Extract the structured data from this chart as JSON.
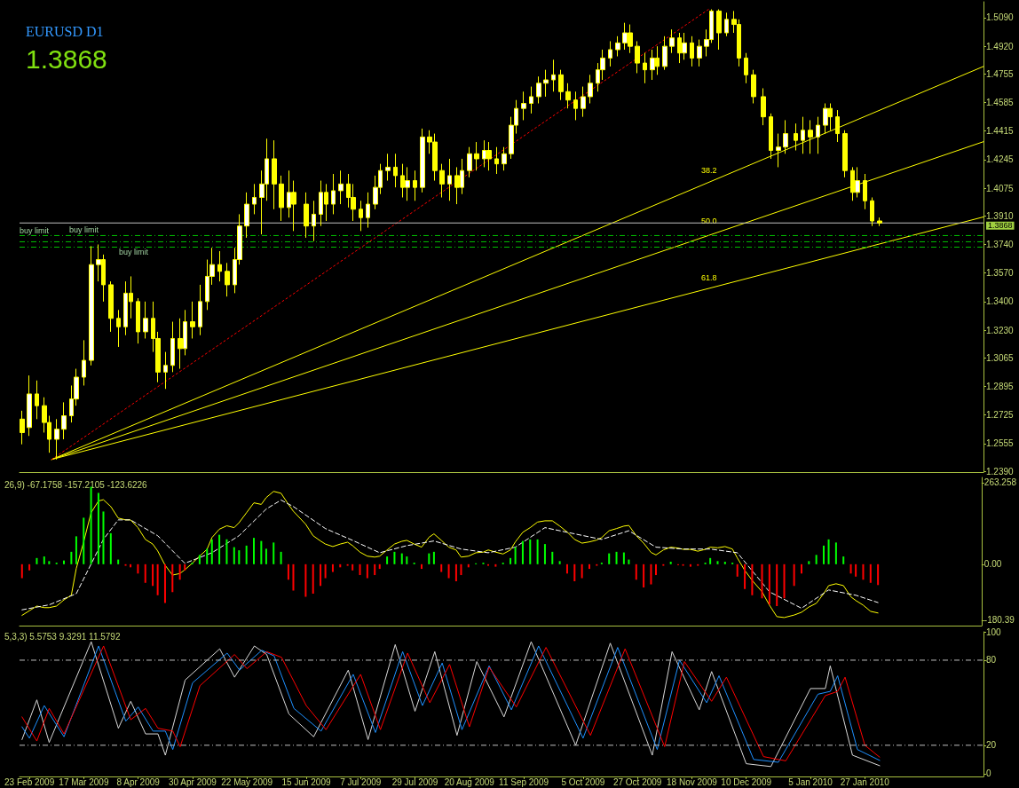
{
  "chart_data": [
    {
      "type": "candlestick",
      "title": "EURUSD D1",
      "subtitle": "1.3868",
      "color": "#ffff00",
      "marker": "none",
      "grid": false,
      "tick_labels": "y",
      "xlim": [
        "2009-02-19",
        "2010-03-16"
      ],
      "ylim": [
        1.2385,
        1.5185
      ],
      "yticks": [
        {
          "value": 1.509,
          "label": "1.5090"
        },
        {
          "value": 1.492,
          "label": "1.4920"
        },
        {
          "value": 1.4755,
          "label": "1.4755"
        },
        {
          "value": 1.4585,
          "label": "1.4585"
        },
        {
          "value": 1.4415,
          "label": "1.4415"
        },
        {
          "value": 1.4245,
          "label": "1.4245"
        },
        {
          "value": 1.4075,
          "label": "1.4075"
        },
        {
          "value": 1.391,
          "label": "1.3910"
        },
        {
          "value": 1.374,
          "label": "1.3740"
        },
        {
          "value": 1.357,
          "label": "1.3570"
        },
        {
          "value": 1.34,
          "label": "1.3400"
        },
        {
          "value": 1.323,
          "label": "1.3230"
        },
        {
          "value": 1.3065,
          "label": "1.3065"
        },
        {
          "value": 1.2895,
          "label": "1.2895"
        },
        {
          "value": 1.2725,
          "label": "1.2725"
        },
        {
          "value": 1.2555,
          "label": "1.2555"
        },
        {
          "value": 1.239,
          "label": "1.2390"
        }
      ],
      "x": [
        "2009-02-20",
        "2009-02-23",
        "2009-02-26",
        "2009-03-01",
        "2009-03-03",
        "2009-03-06",
        "2009-03-09",
        "2009-03-12",
        "2009-03-14",
        "2009-03-17",
        "2009-03-20",
        "2009-03-23",
        "2009-03-25",
        "2009-03-28",
        "2009-03-31",
        "2009-04-03",
        "2009-04-05",
        "2009-04-08",
        "2009-04-11",
        "2009-04-14",
        "2009-04-16",
        "2009-04-19",
        "2009-04-22",
        "2009-04-25",
        "2009-04-27",
        "2009-04-30",
        "2009-05-03",
        "2009-05-06",
        "2009-05-08",
        "2009-05-11",
        "2009-05-14",
        "2009-05-17",
        "2009-05-19",
        "2009-05-22",
        "2009-05-25",
        "2009-05-28",
        "2009-05-30",
        "2009-06-02",
        "2009-06-05",
        "2009-06-08",
        "2009-06-10",
        "2009-06-15",
        "2009-06-18",
        "2009-06-21",
        "2009-06-23",
        "2009-06-26",
        "2009-06-29",
        "2009-07-02",
        "2009-07-04",
        "2009-07-07",
        "2009-07-10",
        "2009-07-13",
        "2009-07-15",
        "2009-07-18",
        "2009-07-21",
        "2009-07-24",
        "2009-07-26",
        "2009-07-29",
        "2009-08-01",
        "2009-08-04",
        "2009-08-06",
        "2009-08-09",
        "2009-08-12",
        "2009-08-15",
        "2009-08-17",
        "2009-08-20",
        "2009-08-23",
        "2009-08-26",
        "2009-08-28",
        "2009-08-31",
        "2009-09-03",
        "2009-09-06",
        "2009-09-08",
        "2009-09-11",
        "2009-09-14",
        "2009-09-17",
        "2009-09-20",
        "2009-09-23",
        "2009-09-26",
        "2009-09-29",
        "2009-10-02",
        "2009-10-05",
        "2009-10-08",
        "2009-10-11",
        "2009-10-13",
        "2009-10-16",
        "2009-10-19",
        "2009-10-22",
        "2009-10-24",
        "2009-10-27",
        "2009-10-30",
        "2009-11-02",
        "2009-11-04",
        "2009-11-07",
        "2009-11-10",
        "2009-11-13",
        "2009-11-15",
        "2009-11-18",
        "2009-11-21",
        "2009-11-24",
        "2009-11-26",
        "2009-11-29",
        "2009-12-02",
        "2009-12-05",
        "2009-12-07",
        "2009-12-10",
        "2009-12-13",
        "2009-12-17",
        "2009-12-20",
        "2009-12-23",
        "2009-12-26",
        "2009-12-30",
        "2010-01-02",
        "2010-01-05",
        "2010-01-08",
        "2010-01-11",
        "2010-01-13",
        "2010-01-16",
        "2010-01-19",
        "2010-01-22",
        "2010-01-24",
        "2010-01-27",
        "2010-01-30",
        "2010-02-02"
      ],
      "ohlc": [
        [
          1.27,
          1.275,
          1.255,
          1.262
        ],
        [
          1.265,
          1.296,
          1.26,
          1.285
        ],
        [
          1.285,
          1.293,
          1.27,
          1.278
        ],
        [
          1.278,
          1.283,
          1.262,
          1.268
        ],
        [
          1.268,
          1.272,
          1.25,
          1.258
        ],
        [
          1.258,
          1.27,
          1.246,
          1.264
        ],
        [
          1.264,
          1.28,
          1.258,
          1.272
        ],
        [
          1.272,
          1.29,
          1.268,
          1.282
        ],
        [
          1.282,
          1.3,
          1.278,
          1.295
        ],
        [
          1.295,
          1.317,
          1.29,
          1.305
        ],
        [
          1.305,
          1.373,
          1.302,
          1.362
        ],
        [
          1.362,
          1.374,
          1.352,
          1.365
        ],
        [
          1.365,
          1.368,
          1.34,
          1.35
        ],
        [
          1.35,
          1.352,
          1.322,
          1.33
        ],
        [
          1.33,
          1.335,
          1.313,
          1.325
        ],
        [
          1.325,
          1.352,
          1.32,
          1.345
        ],
        [
          1.345,
          1.355,
          1.33,
          1.34
        ],
        [
          1.34,
          1.342,
          1.315,
          1.322
        ],
        [
          1.322,
          1.34,
          1.318,
          1.33
        ],
        [
          1.33,
          1.34,
          1.31,
          1.318
        ],
        [
          1.318,
          1.322,
          1.292,
          1.298
        ],
        [
          1.298,
          1.31,
          1.288,
          1.302
        ],
        [
          1.302,
          1.328,
          1.298,
          1.318
        ],
        [
          1.318,
          1.33,
          1.3,
          1.312
        ],
        [
          1.312,
          1.335,
          1.308,
          1.328
        ],
        [
          1.328,
          1.34,
          1.318,
          1.325
        ],
        [
          1.325,
          1.35,
          1.32,
          1.34
        ],
        [
          1.34,
          1.365,
          1.335,
          1.355
        ],
        [
          1.355,
          1.372,
          1.35,
          1.362
        ],
        [
          1.362,
          1.37,
          1.352,
          1.358
        ],
        [
          1.358,
          1.363,
          1.343,
          1.35
        ],
        [
          1.35,
          1.372,
          1.345,
          1.365
        ],
        [
          1.365,
          1.392,
          1.362,
          1.385
        ],
        [
          1.385,
          1.405,
          1.378,
          1.398
        ],
        [
          1.398,
          1.41,
          1.392,
          1.402
        ],
        [
          1.402,
          1.418,
          1.38,
          1.41
        ],
        [
          1.41,
          1.437,
          1.4,
          1.425
        ],
        [
          1.425,
          1.436,
          1.395,
          1.41
        ],
        [
          1.41,
          1.415,
          1.388,
          1.396
        ],
        [
          1.396,
          1.418,
          1.39,
          1.405
        ],
        [
          1.405,
          1.412,
          1.382,
          1.398
        ],
        [
          1.398,
          1.405,
          1.378,
          1.385
        ],
        [
          1.385,
          1.4,
          1.376,
          1.392
        ],
        [
          1.392,
          1.412,
          1.385,
          1.405
        ],
        [
          1.405,
          1.41,
          1.388,
          1.398
        ],
        [
          1.398,
          1.416,
          1.392,
          1.406
        ],
        [
          1.406,
          1.418,
          1.398,
          1.41
        ],
        [
          1.41,
          1.416,
          1.396,
          1.402
        ],
        [
          1.402,
          1.41,
          1.388,
          1.395
        ],
        [
          1.395,
          1.4,
          1.382,
          1.39
        ],
        [
          1.39,
          1.405,
          1.384,
          1.398
        ],
        [
          1.398,
          1.415,
          1.395,
          1.408
        ],
        [
          1.408,
          1.422,
          1.404,
          1.418
        ],
        [
          1.418,
          1.428,
          1.412,
          1.42
        ],
        [
          1.42,
          1.428,
          1.408,
          1.415
        ],
        [
          1.415,
          1.422,
          1.402,
          1.408
        ],
        [
          1.408,
          1.42,
          1.4,
          1.412
        ],
        [
          1.412,
          1.418,
          1.4,
          1.408
        ],
        [
          1.408,
          1.443,
          1.405,
          1.438
        ],
        [
          1.438,
          1.442,
          1.428,
          1.435
        ],
        [
          1.435,
          1.44,
          1.412,
          1.418
        ],
        [
          1.418,
          1.422,
          1.402,
          1.41
        ],
        [
          1.41,
          1.425,
          1.4,
          1.415
        ],
        [
          1.415,
          1.42,
          1.398,
          1.408
        ],
        [
          1.408,
          1.425,
          1.404,
          1.418
        ],
        [
          1.418,
          1.432,
          1.414,
          1.428
        ],
        [
          1.428,
          1.435,
          1.418,
          1.425
        ],
        [
          1.425,
          1.436,
          1.42,
          1.43
        ],
        [
          1.43,
          1.435,
          1.418,
          1.425
        ],
        [
          1.425,
          1.432,
          1.416,
          1.422
        ],
        [
          1.422,
          1.432,
          1.418,
          1.428
        ],
        [
          1.428,
          1.45,
          1.425,
          1.445
        ],
        [
          1.445,
          1.46,
          1.44,
          1.455
        ],
        [
          1.455,
          1.465,
          1.448,
          1.458
        ],
        [
          1.458,
          1.468,
          1.452,
          1.462
        ],
        [
          1.462,
          1.474,
          1.458,
          1.47
        ],
        [
          1.47,
          1.478,
          1.462,
          1.472
        ],
        [
          1.472,
          1.484,
          1.465,
          1.475
        ],
        [
          1.475,
          1.478,
          1.46,
          1.465
        ],
        [
          1.465,
          1.47,
          1.455,
          1.46
        ],
        [
          1.46,
          1.465,
          1.448,
          1.455
        ],
        [
          1.455,
          1.468,
          1.45,
          1.462
        ],
        [
          1.462,
          1.475,
          1.458,
          1.47
        ],
        [
          1.47,
          1.482,
          1.465,
          1.478
        ],
        [
          1.478,
          1.49,
          1.472,
          1.485
        ],
        [
          1.485,
          1.495,
          1.48,
          1.49
        ],
        [
          1.49,
          1.498,
          1.486,
          1.494
        ],
        [
          1.494,
          1.506,
          1.49,
          1.5
        ],
        [
          1.5,
          1.505,
          1.488,
          1.492
        ],
        [
          1.492,
          1.495,
          1.476,
          1.482
        ],
        [
          1.482,
          1.488,
          1.47,
          1.478
        ],
        [
          1.478,
          1.49,
          1.472,
          1.485
        ],
        [
          1.485,
          1.492,
          1.475,
          1.48
        ],
        [
          1.48,
          1.498,
          1.478,
          1.492
        ],
        [
          1.492,
          1.502,
          1.488,
          1.497
        ],
        [
          1.497,
          1.5,
          1.482,
          1.488
        ],
        [
          1.488,
          1.5,
          1.484,
          1.494
        ],
        [
          1.494,
          1.498,
          1.48,
          1.485
        ],
        [
          1.485,
          1.496,
          1.48,
          1.492
        ],
        [
          1.492,
          1.502,
          1.486,
          1.496
        ],
        [
          1.496,
          1.514,
          1.494,
          1.513
        ],
        [
          1.513,
          1.514,
          1.49,
          1.5
        ],
        [
          1.5,
          1.512,
          1.498,
          1.508
        ],
        [
          1.508,
          1.513,
          1.5,
          1.505
        ],
        [
          1.505,
          1.508,
          1.48,
          1.485
        ],
        [
          1.485,
          1.488,
          1.47,
          1.475
        ],
        [
          1.475,
          1.478,
          1.458,
          1.462
        ],
        [
          1.462,
          1.467,
          1.445,
          1.45
        ],
        [
          1.45,
          1.452,
          1.425,
          1.43
        ],
        [
          1.43,
          1.44,
          1.42,
          1.432
        ],
        [
          1.432,
          1.448,
          1.428,
          1.44
        ],
        [
          1.44,
          1.446,
          1.43,
          1.436
        ],
        [
          1.436,
          1.45,
          1.428,
          1.442
        ],
        [
          1.442,
          1.448,
          1.428,
          1.438
        ],
        [
          1.438,
          1.45,
          1.428,
          1.445
        ],
        [
          1.445,
          1.458,
          1.44,
          1.455
        ],
        [
          1.455,
          1.458,
          1.442,
          1.45
        ],
        [
          1.45,
          1.454,
          1.435,
          1.44
        ],
        [
          1.44,
          1.442,
          1.414,
          1.418
        ],
        [
          1.418,
          1.42,
          1.4,
          1.405
        ],
        [
          1.405,
          1.42,
          1.402,
          1.412
        ],
        [
          1.412,
          1.416,
          1.395,
          1.4
        ],
        [
          1.4,
          1.402,
          1.385,
          1.388
        ],
        [
          1.388,
          1.39,
          1.385,
          1.3868
        ]
      ],
      "series": [
        {
          "type": "line",
          "color": "#ffff00",
          "x": [
            "2009-03-04",
            "2010-03-16"
          ],
          "values": [
            1.246,
            1.48
          ]
        },
        {
          "type": "line",
          "color": "#ffff00",
          "x": [
            "2009-03-04",
            "2010-03-16"
          ],
          "values": [
            1.246,
            1.4352
          ]
        },
        {
          "type": "line",
          "color": "#ffff00",
          "x": [
            "2009-03-04",
            "2010-03-16"
          ],
          "values": [
            1.246,
            1.3904
          ]
        },
        {
          "type": "line",
          "color": "#ff0000",
          "line_style": "dotted",
          "x": [
            "2009-03-04",
            "2009-11-25"
          ],
          "values": [
            1.246,
            1.5142
          ]
        }
      ],
      "ref_lines": [
        {
          "axis": "y",
          "value": 1.3868,
          "label": "1.3868",
          "color": "#c0c0c0",
          "line_style": "solid"
        },
        {
          "axis": "y",
          "value": 1.3793,
          "label": "buy limit",
          "color": "#00c000",
          "line_style": "dashed"
        },
        {
          "axis": "y",
          "value": 1.3756,
          "label": "buy limit",
          "color": "#00c000",
          "line_style": "dashed"
        },
        {
          "axis": "y",
          "value": 1.3724,
          "label": "buy limit",
          "color": "#00c000",
          "line_style": "dashed"
        }
      ],
      "annotations": [
        "38.2",
        "50.0",
        "61.8"
      ]
    },
    {
      "type": "bar",
      "title": "26,9) -67.1758 -157.2105 -123.6226",
      "marker": "none",
      "grid": false,
      "tick_labels": "y",
      "xlim": [
        "2009-02-19",
        "2010-03-16"
      ],
      "ylim": [
        -198,
        280
      ],
      "yticks": [
        263.258,
        {
          "value": 0,
          "label": "0.00"
        },
        -180.39
      ],
      "x": [
        "2009-02-20",
        "2009-02-23",
        "2009-02-26",
        "2009-03-01",
        "2009-03-03",
        "2009-03-06",
        "2009-03-09",
        "2009-03-12",
        "2009-03-14",
        "2009-03-17",
        "2009-03-20",
        "2009-03-23",
        "2009-03-25",
        "2009-03-28",
        "2009-03-31",
        "2009-04-03",
        "2009-04-05",
        "2009-04-08",
        "2009-04-11",
        "2009-04-14",
        "2009-04-16",
        "2009-04-19",
        "2009-04-22",
        "2009-04-25",
        "2009-04-27",
        "2009-04-30",
        "2009-05-03",
        "2009-05-06",
        "2009-05-08",
        "2009-05-11",
        "2009-05-14",
        "2009-05-17",
        "2009-05-19",
        "2009-05-22",
        "2009-05-25",
        "2009-05-28",
        "2009-05-30",
        "2009-06-02",
        "2009-06-05",
        "2009-06-08",
        "2009-06-10",
        "2009-06-15",
        "2009-06-18",
        "2009-06-21",
        "2009-06-23",
        "2009-06-26",
        "2009-06-29",
        "2009-07-02",
        "2009-07-04",
        "2009-07-07",
        "2009-07-10",
        "2009-07-13",
        "2009-07-15",
        "2009-07-18",
        "2009-07-21",
        "2009-07-24",
        "2009-07-26",
        "2009-07-29",
        "2009-08-01",
        "2009-08-04",
        "2009-08-06",
        "2009-08-09",
        "2009-08-12",
        "2009-08-15",
        "2009-08-17",
        "2009-08-20",
        "2009-08-23",
        "2009-08-26",
        "2009-08-28",
        "2009-08-31",
        "2009-09-03",
        "2009-09-06",
        "2009-09-08",
        "2009-09-11",
        "2009-09-14",
        "2009-09-17",
        "2009-09-20",
        "2009-09-23",
        "2009-09-26",
        "2009-09-29",
        "2009-10-02",
        "2009-10-05",
        "2009-10-08",
        "2009-10-11",
        "2009-10-13",
        "2009-10-16",
        "2009-10-19",
        "2009-10-22",
        "2009-10-24",
        "2009-10-27",
        "2009-10-30",
        "2009-11-02",
        "2009-11-04",
        "2009-11-07",
        "2009-11-10",
        "2009-11-13",
        "2009-11-15",
        "2009-11-18",
        "2009-11-21",
        "2009-11-24",
        "2009-11-26",
        "2009-11-29",
        "2009-12-02",
        "2009-12-05",
        "2009-12-07",
        "2009-12-10",
        "2009-12-13",
        "2009-12-17",
        "2009-12-20",
        "2009-12-23",
        "2009-12-26",
        "2009-12-30",
        "2010-01-02",
        "2010-01-05",
        "2010-01-08",
        "2010-01-11",
        "2010-01-13",
        "2010-01-16",
        "2010-01-19",
        "2010-01-22",
        "2010-01-24",
        "2010-01-27",
        "2010-01-30",
        "2010-02-02"
      ],
      "values": [
        -45,
        -20,
        20,
        25,
        10,
        5,
        12,
        40,
        90,
        150,
        250,
        230,
        170,
        100,
        15,
        -5,
        -10,
        -30,
        -60,
        -70,
        -100,
        -125,
        -90,
        -50,
        -20,
        5,
        30,
        50,
        80,
        95,
        80,
        55,
        45,
        60,
        85,
        75,
        50,
        70,
        40,
        -50,
        -85,
        -105,
        -95,
        -70,
        -45,
        -25,
        -10,
        -5,
        -20,
        -35,
        -45,
        -35,
        -15,
        25,
        40,
        35,
        25,
        5,
        -15,
        35,
        40,
        -25,
        -45,
        -55,
        -35,
        -10,
        3,
        5,
        -5,
        -8,
        5,
        20,
        55,
        75,
        80,
        80,
        65,
        40,
        10,
        -30,
        -55,
        -45,
        -15,
        -5,
        5,
        35,
        40,
        38,
        15,
        -50,
        -75,
        -65,
        -35,
        -5,
        8,
        -3,
        -5,
        -8,
        -5,
        5,
        20,
        10,
        8,
        5,
        -40,
        -80,
        -100,
        -110,
        -130,
        -135,
        -110,
        -70,
        -30,
        10,
        30,
        60,
        80,
        70,
        25,
        -30,
        -40,
        -50,
        -60,
        -67.1758
      ],
      "colors": [
        "#ff0000",
        "#ff0000",
        "#00ff00",
        "#00ff00",
        "#00ff00",
        "#00ff00",
        "#00ff00",
        "#00ff00",
        "#00ff00",
        "#00ff00",
        "#00ff00",
        "#00ff00",
        "#00ff00",
        "#00ff00",
        "#00ff00",
        "#ff0000",
        "#ff0000",
        "#ff0000",
        "#ff0000",
        "#ff0000",
        "#ff0000",
        "#ff0000",
        "#ff0000",
        "#ff0000",
        "#ff0000",
        "#00ff00",
        "#00ff00",
        "#00ff00",
        "#00ff00",
        "#00ff00",
        "#00ff00",
        "#00ff00",
        "#00ff00",
        "#00ff00",
        "#00ff00",
        "#00ff00",
        "#00ff00",
        "#00ff00",
        "#00ff00",
        "#ff0000",
        "#ff0000",
        "#ff0000",
        "#ff0000",
        "#ff0000",
        "#ff0000",
        "#ff0000",
        "#ff0000",
        "#ff0000",
        "#ff0000",
        "#ff0000",
        "#ff0000",
        "#ff0000",
        "#ff0000",
        "#00ff00",
        "#00ff00",
        "#00ff00",
        "#00ff00",
        "#00ff00",
        "#ff0000",
        "#00ff00",
        "#00ff00",
        "#ff0000",
        "#ff0000",
        "#ff0000",
        "#ff0000",
        "#ff0000",
        "#00ff00",
        "#00ff00",
        "#ff0000",
        "#ff0000",
        "#00ff00",
        "#00ff00",
        "#00ff00",
        "#00ff00",
        "#00ff00",
        "#00ff00",
        "#00ff00",
        "#00ff00",
        "#00ff00",
        "#ff0000",
        "#ff0000",
        "#ff0000",
        "#ff0000",
        "#ff0000",
        "#00ff00",
        "#00ff00",
        "#00ff00",
        "#00ff00",
        "#00ff00",
        "#ff0000",
        "#ff0000",
        "#ff0000",
        "#ff0000",
        "#ff0000",
        "#00ff00",
        "#ff0000",
        "#ff0000",
        "#ff0000",
        "#ff0000",
        "#00ff00",
        "#00ff00",
        "#00ff00",
        "#00ff00",
        "#00ff00",
        "#ff0000",
        "#ff0000",
        "#ff0000",
        "#ff0000",
        "#ff0000",
        "#ff0000",
        "#ff0000",
        "#ff0000",
        "#ff0000",
        "#00ff00",
        "#00ff00",
        "#00ff00",
        "#00ff00",
        "#00ff00",
        "#00ff00",
        "#ff0000",
        "#ff0000",
        "#ff0000",
        "#ff0000",
        "#ff0000"
      ],
      "series": [
        {
          "type": "line",
          "color": "#ffff00",
          "values": [
            -165,
            -150,
            -135,
            -140,
            -140,
            -135,
            -115,
            -100,
            -14,
            72,
            166,
            204,
            208,
            186,
            149,
            143,
            143,
            118,
            80,
            65,
            43,
            -3,
            -35,
            -30,
            -18,
            3,
            26,
            48,
            86,
            113,
            124,
            118,
            134,
            166,
            198,
            193,
            215,
            235,
            229,
            193,
            171,
            129,
            92,
            75,
            65,
            57,
            65,
            71,
            60,
            39,
            26,
            23,
            26,
            46,
            65,
            74,
            77,
            65,
            55,
            87,
            98,
            77,
            55,
            46,
            23,
            26,
            37,
            39,
            46,
            39,
            33,
            46,
            72,
            103,
            118,
            136,
            140,
            140,
            123,
            104,
            80,
            68,
            72,
            78,
            86,
            108,
            115,
            123,
            125,
            92,
            68,
            38,
            30,
            46,
            55,
            52,
            48,
            48,
            42,
            48,
            55,
            53,
            57,
            49,
            20,
            -20,
            -52,
            -89,
            -132,
            -169,
            -172,
            -164,
            -155,
            -138,
            -126,
            -95,
            -69,
            -63,
            -69,
            -105,
            -117,
            -132,
            -152,
            -157.2105
          ]
        },
        {
          "type": "line",
          "color": "#ffffff",
          "line_style": "dashed",
          "x": [
            "2009-02-20",
            "2009-03-03",
            "2009-03-14",
            "2009-03-25",
            "2009-03-31",
            "2009-04-05",
            "2009-04-16",
            "2009-04-27",
            "2009-05-08",
            "2009-05-19",
            "2009-05-30",
            "2009-06-05",
            "2009-06-10",
            "2009-06-23",
            "2009-07-04",
            "2009-07-15",
            "2009-07-26",
            "2009-08-06",
            "2009-08-17",
            "2009-08-28",
            "2009-09-08",
            "2009-09-20",
            "2009-10-02",
            "2009-10-13",
            "2009-10-24",
            "2009-11-04",
            "2009-11-15",
            "2009-11-26",
            "2009-12-07",
            "2009-12-20",
            "2010-01-02",
            "2010-01-13",
            "2010-01-24",
            "2010-02-02"
          ],
          "values": [
            -147,
            -131,
            -95,
            80,
            143,
            143,
            92,
            3,
            37,
            92,
            178,
            207,
            186,
            115,
            77,
            37,
            60,
            75,
            49,
            37,
            55,
            118,
            98,
            80,
            108,
            55,
            49,
            49,
            37,
            -89,
            -142,
            -83,
            -100,
            -123.6226
          ]
        }
      ]
    },
    {
      "type": "line",
      "title": "5,3,3) 5.5753 9.3291 11.5792",
      "marker": "none",
      "grid": false,
      "xlim": [
        "2009-02-19",
        "2010-03-16"
      ],
      "ylim": [
        -2,
        100
      ],
      "yticks": [
        100,
        80,
        20,
        0
      ],
      "xticks": [
        {
          "value": "2009-02-23",
          "label": "23 Feb 2009"
        },
        {
          "value": "2009-03-17",
          "label": "17 Mar 2009"
        },
        {
          "value": "2009-04-08",
          "label": "8 Apr 2009"
        },
        {
          "value": "2009-04-30",
          "label": "30 Apr 2009"
        },
        {
          "value": "2009-05-22",
          "label": "22 May 2009"
        },
        {
          "value": "2009-06-15",
          "label": "15 Jun 2009"
        },
        {
          "value": "2009-07-07",
          "label": "7 Jul 2009"
        },
        {
          "value": "2009-07-29",
          "label": "29 Jul 2009"
        },
        {
          "value": "2009-08-20",
          "label": "20 Aug 2009"
        },
        {
          "value": "2009-09-11",
          "label": "11 Sep 2009"
        },
        {
          "value": "2009-10-05",
          "label": "5 Oct 2009"
        },
        {
          "value": "2009-10-27",
          "label": "27 Oct 2009"
        },
        {
          "value": "2009-11-18",
          "label": "18 Nov 2009"
        },
        {
          "value": "2009-12-10",
          "label": "10 Dec 2009"
        },
        {
          "value": "2010-01-05",
          "label": "5 Jan 2010"
        },
        {
          "value": "2010-01-27",
          "label": "27 Jan 2010"
        }
      ],
      "series": [
        {
          "color": "#d8d8d8",
          "x": [
            "2009-02-20",
            "2009-02-26",
            "2009-03-03",
            "2009-03-20",
            "2009-03-31",
            "2009-04-05",
            "2009-04-11",
            "2009-04-16",
            "2009-04-19",
            "2009-04-27",
            "2009-05-11",
            "2009-05-17",
            "2009-05-25",
            "2009-05-30",
            "2009-06-08",
            "2009-06-18",
            "2009-07-02",
            "2009-07-10",
            "2009-07-21",
            "2009-07-29",
            "2009-08-06",
            "2009-08-15",
            "2009-08-23",
            "2009-09-03",
            "2009-09-14",
            "2009-10-02",
            "2009-10-16",
            "2009-11-02",
            "2009-11-10",
            "2009-11-21",
            "2009-11-26",
            "2009-12-10",
            "2009-12-20",
            "2010-01-05",
            "2010-01-11",
            "2010-01-13",
            "2010-01-22",
            "2010-02-02"
          ],
          "values": [
            24,
            52,
            22,
            93,
            32,
            51,
            28,
            28,
            13,
            66,
            88,
            68,
            90,
            84,
            42,
            26,
            73,
            24,
            91,
            44,
            86,
            27,
            79,
            40,
            93,
            20,
            92,
            13,
            86,
            45,
            72,
            7,
            5,
            60,
            60,
            76,
            13,
            5.5753
          ]
        },
        {
          "color": "#1e90ff",
          "x": [
            "2009-02-20",
            "2009-02-23",
            "2009-03-01",
            "2009-03-09",
            "2009-03-23",
            "2009-04-03",
            "2009-04-08",
            "2009-04-14",
            "2009-04-19",
            "2009-04-22",
            "2009-04-30",
            "2009-05-14",
            "2009-05-19",
            "2009-05-28",
            "2009-06-02",
            "2009-06-10",
            "2009-06-21",
            "2009-07-04",
            "2009-07-13",
            "2009-07-24",
            "2009-08-01",
            "2009-08-09",
            "2009-08-17",
            "2009-08-28",
            "2009-09-06",
            "2009-09-17",
            "2009-10-05",
            "2009-10-19",
            "2009-11-04",
            "2009-11-13",
            "2009-11-24",
            "2009-11-29",
            "2009-12-13",
            "2009-12-23",
            "2010-01-08",
            "2010-01-13",
            "2010-01-16",
            "2010-01-24",
            "2010-02-02"
          ],
          "values": [
            33,
            25,
            48,
            26,
            90,
            37,
            47,
            30,
            30,
            17,
            64,
            85,
            73,
            87,
            83,
            46,
            30,
            70,
            29,
            86,
            48,
            78,
            31,
            76,
            45,
            90,
            25,
            89,
            17,
            80,
            50,
            69,
            10,
            8,
            56,
            58,
            69,
            17,
            9.3291
          ]
        },
        {
          "color": "#ff0000",
          "x": [
            "2009-02-20",
            "2009-02-26",
            "2009-03-03",
            "2009-03-09",
            "2009-03-25",
            "2009-04-05",
            "2009-04-11",
            "2009-04-16",
            "2009-04-22",
            "2009-04-25",
            "2009-05-03",
            "2009-05-17",
            "2009-05-22",
            "2009-05-30",
            "2009-06-05",
            "2009-06-15",
            "2009-06-23",
            "2009-07-07",
            "2009-07-15",
            "2009-07-26",
            "2009-08-04",
            "2009-08-12",
            "2009-08-20",
            "2009-08-28",
            "2009-09-08",
            "2009-09-20",
            "2009-10-08",
            "2009-10-22",
            "2009-11-07",
            "2009-11-15",
            "2009-11-26",
            "2009-12-02",
            "2009-12-17",
            "2009-12-26",
            "2010-01-11",
            "2010-01-16",
            "2010-01-19",
            "2010-01-27",
            "2010-02-02"
          ],
          "values": [
            40,
            23,
            46,
            28,
            90,
            38,
            46,
            32,
            30,
            19,
            62,
            84,
            74,
            86,
            82,
            48,
            31,
            70,
            31,
            85,
            50,
            77,
            33,
            75,
            47,
            89,
            27,
            88,
            19,
            79,
            51,
            68,
            12,
            9,
            55,
            58,
            68,
            20,
            11.5792
          ]
        }
      ],
      "ref_lines": [
        {
          "axis": "y",
          "value": 80,
          "color": "#c0c0c0",
          "line_style": "dashed"
        },
        {
          "axis": "y",
          "value": 20,
          "color": "#c0c0c0",
          "line_style": "dashed"
        }
      ]
    }
  ]
}
